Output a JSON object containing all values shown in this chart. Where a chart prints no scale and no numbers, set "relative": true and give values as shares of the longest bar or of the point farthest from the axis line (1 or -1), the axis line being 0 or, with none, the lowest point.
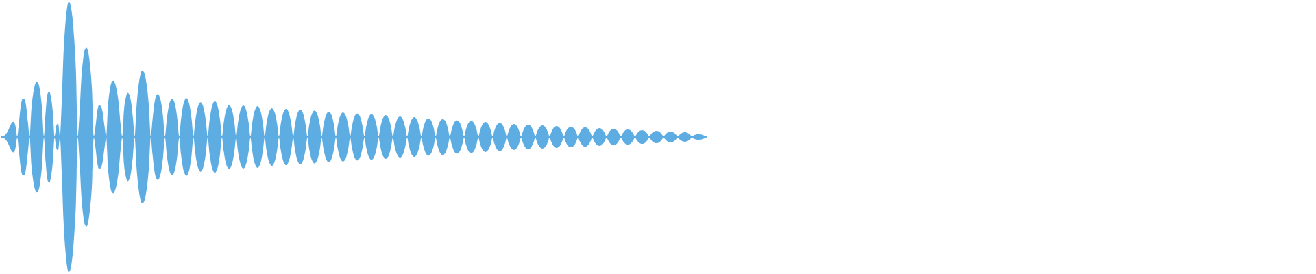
{
  "chart_data": {
    "type": "area",
    "relative": true,
    "categories": [
      null,
      null,
      null,
      null,
      null,
      null,
      null,
      null,
      null,
      null,
      null,
      null,
      null,
      null,
      null,
      null,
      null,
      null,
      null,
      null,
      null,
      null,
      null,
      null,
      null,
      null,
      null,
      null,
      null,
      null,
      null,
      null,
      null,
      null,
      null,
      null,
      null,
      null,
      null,
      null,
      null,
      null,
      null,
      null,
      null,
      null,
      null,
      null,
      null,
      null,
      null,
      null,
      null,
      null,
      null,
      null,
      null,
      null,
      null,
      null,
      null,
      null,
      null,
      null,
      null,
      null,
      null,
      null,
      null,
      null,
      null,
      null,
      null,
      null,
      null,
      null,
      null,
      null,
      null,
      null,
      null,
      null,
      null,
      null,
      null,
      null,
      null,
      null,
      null,
      null,
      null,
      null,
      null,
      null,
      null,
      null,
      null,
      null,
      null,
      null,
      null,
      null,
      null,
      null,
      null,
      null,
      null,
      null,
      null,
      null,
      null,
      null,
      null,
      null,
      null,
      null,
      null,
      null,
      null,
      null,
      null,
      null,
      null,
      null,
      null,
      null,
      null,
      null,
      null,
      null,
      null,
      null,
      null,
      null,
      null,
      null,
      null,
      null,
      null,
      null,
      null,
      null,
      null,
      null,
      null,
      null,
      null,
      null,
      null,
      null,
      null,
      null,
      null,
      null,
      null,
      null,
      null,
      null,
      null,
      null,
      null,
      null,
      null,
      null,
      null,
      null,
      null,
      null,
      null,
      null,
      null,
      null,
      null,
      null,
      null,
      null,
      null,
      null,
      null,
      null,
      null,
      null,
      null,
      null,
      null,
      null,
      null,
      null,
      null,
      null,
      null,
      null,
      null,
      null,
      null,
      null,
      null,
      null,
      null,
      null,
      null,
      null,
      null,
      null,
      null,
      null,
      null,
      null,
      null,
      null,
      null,
      null,
      null,
      null,
      null,
      null,
      null,
      null,
      null,
      null,
      null,
      null,
      null,
      null,
      null,
      null,
      null,
      null,
      null,
      null,
      null,
      null,
      null,
      null,
      null,
      null,
      null,
      null,
      null,
      null,
      null,
      null,
      null,
      null,
      null,
      null,
      null,
      null,
      null,
      null,
      null,
      null,
      null,
      null,
      null,
      null,
      null,
      null,
      null,
      null,
      null,
      null,
      null,
      null,
      null,
      null,
      null,
      null,
      null,
      null,
      null,
      null,
      null,
      null,
      null,
      null,
      null,
      null,
      null,
      null,
      null,
      null,
      null,
      null,
      null,
      null,
      null,
      null,
      null,
      null,
      null,
      null,
      null,
      null,
      null,
      null,
      null,
      null,
      null,
      null,
      null,
      null,
      null,
      null,
      null,
      null,
      null,
      null,
      null,
      null,
      null,
      null,
      null,
      null,
      null,
      null,
      null,
      null,
      null,
      null,
      null,
      null,
      null,
      null,
      null,
      null,
      null,
      null,
      null,
      null,
      null,
      null,
      null,
      null,
      null,
      null,
      null,
      null,
      null,
      null,
      null,
      null,
      null,
      null,
      null,
      null,
      null,
      null,
      null,
      null,
      null,
      null,
      null,
      null,
      null,
      null,
      null,
      null,
      null,
      null,
      null,
      null,
      null,
      null,
      null,
      null,
      null,
      null,
      null,
      null,
      null,
      null,
      null,
      null,
      null,
      null,
      null,
      null,
      null,
      null,
      null,
      null,
      null,
      null,
      null,
      null,
      null,
      null,
      null,
      null,
      null,
      null,
      null,
      null,
      null,
      null,
      null
    ],
    "series": [
      {
        "color": "#5dade2",
        "values": [
          0.004,
          0.008,
          0.013,
          0.028,
          0.051,
          0.081,
          0.106,
          0.114,
          0.083,
          0.005,
          0.112,
          0.228,
          0.281,
          0.283,
          0.231,
          0.113,
          0.005,
          0.211,
          0.324,
          0.388,
          0.412,
          0.394,
          0.326,
          0.202,
          0.005,
          0.187,
          0.316,
          0.337,
          0.292,
          0.187,
          0.005,
          0.085,
          0.1,
          0.005,
          0.255,
          0.616,
          0.827,
          0.954,
          1,
          0.974,
          0.886,
          0.729,
          0.488,
          0.005,
          0.172,
          0.424,
          0.571,
          0.647,
          0.661,
          0.619,
          0.519,
          0.352,
          0.005,
          0.081,
          0.193,
          0.236,
          0.228,
          0.182,
          0.085,
          0.005,
          0.231,
          0.345,
          0.405,
          0.417,
          0.394,
          0.34,
          0.251,
          0.104,
          0.005,
          0.204,
          0.291,
          0.326,
          0.313,
          0.255,
          0.14,
          0.005,
          0.221,
          0.364,
          0.449,
          0.488,
          0.484,
          0.442,
          0.358,
          0.223,
          0.005,
          0.128,
          0.244,
          0.303,
          0.318,
          0.298,
          0.243,
          0.141,
          0.005,
          0.128,
          0.219,
          0.267,
          0.284,
          0.267,
          0.219,
          0.128,
          0.005,
          0.129,
          0.221,
          0.27,
          0.287,
          0.27,
          0.221,
          0.129,
          0.005,
          0.116,
          0.198,
          0.242,
          0.257,
          0.242,
          0.198,
          0.116,
          0.005,
          0.119,
          0.204,
          0.249,
          0.265,
          0.249,
          0.204,
          0.119,
          0.005,
          0.106,
          0.182,
          0.222,
          0.236,
          0.222,
          0.182,
          0.106,
          0.005,
          0.105,
          0.179,
          0.219,
          0.233,
          0.219,
          0.179,
          0.105,
          0.005,
          0.103,
          0.176,
          0.214,
          0.228,
          0.214,
          0.176,
          0.103,
          0.005,
          0.096,
          0.164,
          0.2,
          0.213,
          0.2,
          0.164,
          0.096,
          0.005,
          0.094,
          0.16,
          0.196,
          0.208,
          0.196,
          0.16,
          0.094,
          0.005,
          0.091,
          0.156,
          0.191,
          0.203,
          0.191,
          0.156,
          0.091,
          0.005,
          0.088,
          0.151,
          0.184,
          0.196,
          0.184,
          0.151,
          0.088,
          0.005,
          0.084,
          0.144,
          0.176,
          0.187,
          0.176,
          0.144,
          0.084,
          0.005,
          0.082,
          0.14,
          0.171,
          0.182,
          0.171,
          0.14,
          0.082,
          0.005,
          0.078,
          0.134,
          0.164,
          0.174,
          0.164,
          0.134,
          0.078,
          0.005,
          0.076,
          0.13,
          0.159,
          0.169,
          0.159,
          0.13,
          0.076,
          0.005,
          0.073,
          0.125,
          0.152,
          0.162,
          0.152,
          0.125,
          0.073,
          0.005,
          0.068,
          0.117,
          0.143,
          0.152,
          0.143,
          0.117,
          0.068,
          0.005,
          0.066,
          0.113,
          0.138,
          0.147,
          0.138,
          0.113,
          0.066,
          0.005,
          0.062,
          0.106,
          0.13,
          0.138,
          0.13,
          0.106,
          0.062,
          0.005,
          0.06,
          0.102,
          0.125,
          0.133,
          0.125,
          0.102,
          0.06,
          0.005,
          0.055,
          0.095,
          0.116,
          0.123,
          0.116,
          0.095,
          0.055,
          0.005,
          0.054,
          0.092,
          0.113,
          0.12,
          0.113,
          0.092,
          0.054,
          0.005,
          0.05,
          0.085,
          0.104,
          0.111,
          0.104,
          0.085,
          0.05,
          0.005,
          0.047,
          0.081,
          0.099,
          0.105,
          0.099,
          0.081,
          0.047,
          0.005,
          0.043,
          0.074,
          0.09,
          0.096,
          0.09,
          0.074,
          0.043,
          0.005,
          0.041,
          0.07,
          0.086,
          0.091,
          0.086,
          0.07,
          0.041,
          0.005,
          0.039,
          0.066,
          0.081,
          0.086,
          0.081,
          0.066,
          0.039,
          0.005,
          0.036,
          0.062,
          0.076,
          0.081,
          0.076,
          0.062,
          0.036,
          0.005,
          0.034,
          0.059,
          0.071,
          0.076,
          0.071,
          0.059,
          0.034,
          0.005,
          0.032,
          0.055,
          0.068,
          0.072,
          0.068,
          0.055,
          0.032,
          0.005,
          0.03,
          0.051,
          0.062,
          0.066,
          0.062,
          0.051,
          0.03,
          0.005,
          0.027,
          0.047,
          0.057,
          0.061,
          0.057,
          0.047,
          0.027,
          0.005,
          0.025,
          0.043,
          0.053,
          0.056,
          0.053,
          0.043,
          0.025,
          0.005,
          0.023,
          0.039,
          0.048,
          0.051,
          0.048,
          0.039,
          0.023,
          0.005,
          0.021,
          0.035,
          0.043,
          0.046,
          0.043,
          0.035,
          0.021,
          0.005,
          0.018,
          0.03,
          0.037,
          0.039,
          0.037,
          0.03,
          0.018,
          0.005,
          0.016,
          0.027,
          0.033,
          0.035,
          0.033,
          0.027,
          0.016,
          0.005,
          0.013,
          0.018,
          0.021,
          0.022,
          0.019,
          0.015,
          0.01,
          0.005
        ]
      },
      {
        "color": "#5eade2",
        "values": [
          -0.004,
          -0.008,
          -0.013,
          -0.028,
          -0.051,
          -0.081,
          -0.106,
          -0.114,
          -0.083,
          -0.005,
          -0.112,
          -0.228,
          -0.281,
          -0.283,
          -0.231,
          -0.113,
          -0.005,
          -0.211,
          -0.324,
          -0.388,
          -0.412,
          -0.394,
          -0.326,
          -0.202,
          -0.005,
          -0.187,
          -0.316,
          -0.337,
          -0.292,
          -0.187,
          -0.005,
          -0.085,
          -0.1,
          -0.005,
          -0.255,
          -0.616,
          -0.827,
          -0.954,
          -1,
          -0.974,
          -0.886,
          -0.729,
          -0.488,
          -0.005,
          -0.172,
          -0.424,
          -0.571,
          -0.647,
          -0.661,
          -0.619,
          -0.519,
          -0.352,
          -0.005,
          -0.081,
          -0.193,
          -0.236,
          -0.228,
          -0.182,
          -0.085,
          -0.005,
          -0.231,
          -0.345,
          -0.405,
          -0.417,
          -0.394,
          -0.34,
          -0.251,
          -0.104,
          -0.005,
          -0.204,
          -0.291,
          -0.326,
          -0.313,
          -0.255,
          -0.14,
          -0.005,
          -0.221,
          -0.364,
          -0.449,
          -0.488,
          -0.484,
          -0.442,
          -0.358,
          -0.223,
          -0.005,
          -0.128,
          -0.244,
          -0.303,
          -0.318,
          -0.298,
          -0.243,
          -0.141,
          -0.005,
          -0.128,
          -0.219,
          -0.267,
          -0.284,
          -0.267,
          -0.219,
          -0.128,
          -0.005,
          -0.129,
          -0.221,
          -0.27,
          -0.287,
          -0.27,
          -0.221,
          -0.129,
          -0.005,
          -0.116,
          -0.198,
          -0.242,
          -0.257,
          -0.242,
          -0.198,
          -0.116,
          -0.005,
          -0.119,
          -0.204,
          -0.249,
          -0.265,
          -0.249,
          -0.204,
          -0.119,
          -0.005,
          -0.106,
          -0.182,
          -0.222,
          -0.236,
          -0.222,
          -0.182,
          -0.106,
          -0.005,
          -0.105,
          -0.179,
          -0.219,
          -0.233,
          -0.219,
          -0.179,
          -0.105,
          -0.005,
          -0.103,
          -0.176,
          -0.214,
          -0.228,
          -0.214,
          -0.176,
          -0.103,
          -0.005,
          -0.096,
          -0.164,
          -0.2,
          -0.213,
          -0.2,
          -0.164,
          -0.096,
          -0.005,
          -0.094,
          -0.16,
          -0.196,
          -0.208,
          -0.196,
          -0.16,
          -0.094,
          -0.005,
          -0.091,
          -0.156,
          -0.191,
          -0.203,
          -0.191,
          -0.156,
          -0.091,
          -0.005,
          -0.088,
          -0.151,
          -0.184,
          -0.196,
          -0.184,
          -0.151,
          -0.088,
          -0.005,
          -0.084,
          -0.144,
          -0.176,
          -0.187,
          -0.176,
          -0.144,
          -0.084,
          -0.005,
          -0.082,
          -0.14,
          -0.171,
          -0.182,
          -0.171,
          -0.14,
          -0.082,
          -0.005,
          -0.078,
          -0.134,
          -0.164,
          -0.174,
          -0.164,
          -0.134,
          -0.078,
          -0.005,
          -0.076,
          -0.13,
          -0.159,
          -0.169,
          -0.159,
          -0.13,
          -0.076,
          -0.005,
          -0.073,
          -0.125,
          -0.152,
          -0.162,
          -0.152,
          -0.125,
          -0.073,
          -0.005,
          -0.068,
          -0.117,
          -0.143,
          -0.152,
          -0.143,
          -0.117,
          -0.068,
          -0.005,
          -0.066,
          -0.113,
          -0.138,
          -0.147,
          -0.138,
          -0.113,
          -0.066,
          -0.005,
          -0.062,
          -0.106,
          -0.13,
          -0.138,
          -0.13,
          -0.106,
          -0.062,
          -0.005,
          -0.06,
          -0.102,
          -0.125,
          -0.133,
          -0.125,
          -0.102,
          -0.06,
          -0.005,
          -0.055,
          -0.095,
          -0.116,
          -0.123,
          -0.116,
          -0.095,
          -0.055,
          -0.005,
          -0.054,
          -0.092,
          -0.113,
          -0.12,
          -0.113,
          -0.092,
          -0.054,
          -0.005,
          -0.05,
          -0.085,
          -0.104,
          -0.111,
          -0.104,
          -0.085,
          -0.05,
          -0.005,
          -0.047,
          -0.081,
          -0.099,
          -0.105,
          -0.099,
          -0.081,
          -0.047,
          -0.005,
          -0.043,
          -0.074,
          -0.09,
          -0.096,
          -0.09,
          -0.074,
          -0.043,
          -0.005,
          -0.041,
          -0.07,
          -0.086,
          -0.091,
          -0.086,
          -0.07,
          -0.041,
          -0.005,
          -0.039,
          -0.066,
          -0.081,
          -0.086,
          -0.081,
          -0.066,
          -0.039,
          -0.005,
          -0.036,
          -0.062,
          -0.076,
          -0.081,
          -0.076,
          -0.062,
          -0.036,
          -0.005,
          -0.034,
          -0.059,
          -0.071,
          -0.076,
          -0.071,
          -0.059,
          -0.034,
          -0.005,
          -0.032,
          -0.055,
          -0.068,
          -0.072,
          -0.068,
          -0.055,
          -0.032,
          -0.005,
          -0.03,
          -0.051,
          -0.062,
          -0.066,
          -0.062,
          -0.051,
          -0.03,
          -0.005,
          -0.027,
          -0.047,
          -0.057,
          -0.061,
          -0.057,
          -0.047,
          -0.027,
          -0.005,
          -0.025,
          -0.043,
          -0.053,
          -0.056,
          -0.053,
          -0.043,
          -0.025,
          -0.005,
          -0.023,
          -0.039,
          -0.048,
          -0.051,
          -0.048,
          -0.039,
          -0.023,
          -0.005,
          -0.021,
          -0.035,
          -0.043,
          -0.046,
          -0.043,
          -0.035,
          -0.021,
          -0.005,
          -0.018,
          -0.03,
          -0.037,
          -0.039,
          -0.037,
          -0.03,
          -0.018,
          -0.005,
          -0.016,
          -0.027,
          -0.033,
          -0.035,
          -0.033,
          -0.027,
          -0.016,
          -0.005,
          -0.013,
          -0.018,
          -0.021,
          -0.022,
          -0.019,
          -0.015,
          -0.01,
          -0.005
        ]
      }
    ]
  }
}
